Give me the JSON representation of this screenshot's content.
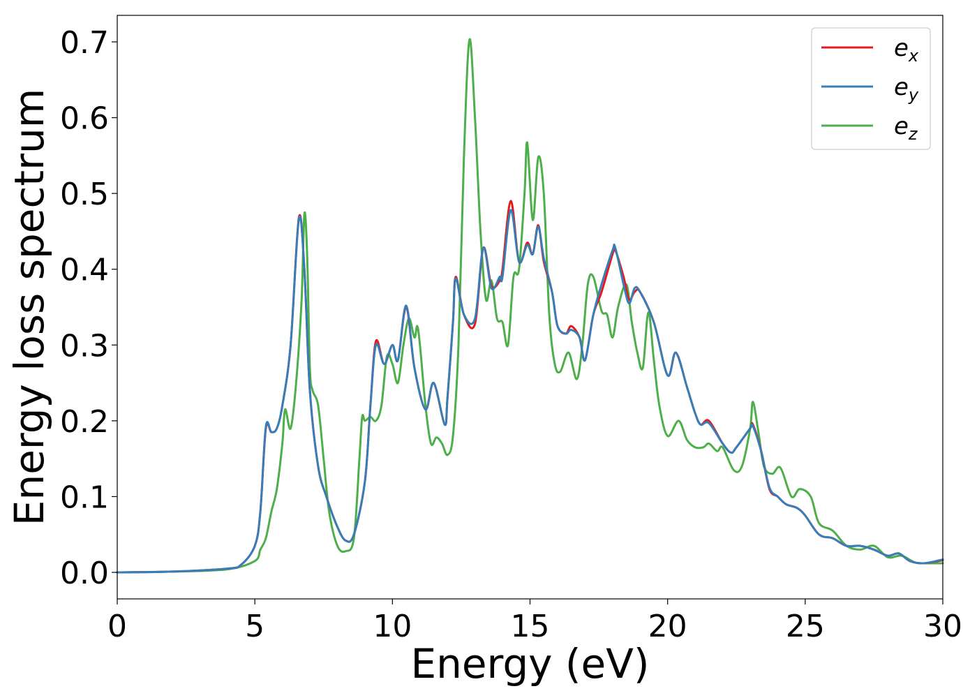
{
  "chart_data": {
    "type": "line",
    "xlabel": "Energy (eV)",
    "ylabel": "Energy loss spectrum",
    "xlim": [
      0,
      30
    ],
    "ylim": [
      -0.035,
      0.735
    ],
    "xticks": [
      0,
      5,
      10,
      15,
      20,
      25,
      30
    ],
    "yticks": [
      0.0,
      0.1,
      0.2,
      0.3,
      0.4,
      0.5,
      0.6,
      0.7
    ],
    "xtick_labels": [
      "0",
      "5",
      "10",
      "15",
      "20",
      "25",
      "30"
    ],
    "ytick_labels": [
      "0.0",
      "0.1",
      "0.2",
      "0.3",
      "0.4",
      "0.5",
      "0.6",
      "0.7"
    ],
    "grid": false,
    "legend_position": "top-right",
    "series": [
      {
        "name": "e_x",
        "legend_base": "e",
        "legend_sub": "x",
        "color": "#e41a1c",
        "points": [
          [
            0,
            0
          ],
          [
            2,
            0.001
          ],
          [
            4,
            0.005
          ],
          [
            4.5,
            0.01
          ],
          [
            5,
            0.035
          ],
          [
            5.2,
            0.08
          ],
          [
            5.4,
            0.19
          ],
          [
            5.6,
            0.185
          ],
          [
            5.8,
            0.19
          ],
          [
            6.0,
            0.22
          ],
          [
            6.3,
            0.3
          ],
          [
            6.6,
            0.468
          ],
          [
            6.8,
            0.4
          ],
          [
            7.0,
            0.24
          ],
          [
            7.3,
            0.14
          ],
          [
            7.6,
            0.1
          ],
          [
            8.0,
            0.06
          ],
          [
            8.3,
            0.042
          ],
          [
            8.6,
            0.05
          ],
          [
            9.0,
            0.12
          ],
          [
            9.2,
            0.22
          ],
          [
            9.4,
            0.305
          ],
          [
            9.7,
            0.275
          ],
          [
            10.0,
            0.3
          ],
          [
            10.2,
            0.28
          ],
          [
            10.5,
            0.35
          ],
          [
            10.8,
            0.27
          ],
          [
            11.2,
            0.215
          ],
          [
            11.5,
            0.25
          ],
          [
            11.9,
            0.195
          ],
          [
            12.0,
            0.23
          ],
          [
            12.2,
            0.33
          ],
          [
            12.3,
            0.39
          ],
          [
            12.6,
            0.34
          ],
          [
            13.0,
            0.328
          ],
          [
            13.3,
            0.428
          ],
          [
            13.6,
            0.378
          ],
          [
            13.9,
            0.385
          ],
          [
            14.0,
            0.4
          ],
          [
            14.3,
            0.49
          ],
          [
            14.6,
            0.41
          ],
          [
            14.9,
            0.435
          ],
          [
            15.1,
            0.42
          ],
          [
            15.3,
            0.458
          ],
          [
            15.5,
            0.41
          ],
          [
            15.8,
            0.37
          ],
          [
            16.0,
            0.325
          ],
          [
            16.3,
            0.315
          ],
          [
            16.5,
            0.325
          ],
          [
            16.8,
            0.31
          ],
          [
            17.0,
            0.28
          ],
          [
            17.3,
            0.34
          ],
          [
            17.6,
            0.37
          ],
          [
            18.0,
            0.42
          ],
          [
            18.1,
            0.425
          ],
          [
            18.4,
            0.39
          ],
          [
            18.6,
            0.36
          ],
          [
            18.8,
            0.37
          ],
          [
            19.0,
            0.37
          ],
          [
            19.5,
            0.33
          ],
          [
            20.0,
            0.26
          ],
          [
            20.3,
            0.29
          ],
          [
            20.7,
            0.245
          ],
          [
            21.0,
            0.21
          ],
          [
            21.2,
            0.195
          ],
          [
            21.5,
            0.2
          ],
          [
            22.0,
            0.17
          ],
          [
            22.3,
            0.158
          ],
          [
            22.5,
            0.165
          ],
          [
            23.0,
            0.19
          ],
          [
            23.1,
            0.195
          ],
          [
            23.4,
            0.16
          ],
          [
            23.7,
            0.11
          ],
          [
            24.0,
            0.1
          ],
          [
            24.3,
            0.09
          ],
          [
            24.7,
            0.085
          ],
          [
            25.0,
            0.075
          ],
          [
            25.5,
            0.05
          ],
          [
            26.0,
            0.045
          ],
          [
            26.5,
            0.035
          ],
          [
            27.0,
            0.035
          ],
          [
            27.5,
            0.03
          ],
          [
            28.0,
            0.022
          ],
          [
            28.4,
            0.025
          ],
          [
            28.8,
            0.015
          ],
          [
            29.3,
            0.012
          ],
          [
            30.0,
            0.016
          ]
        ]
      },
      {
        "name": "e_y",
        "legend_base": "e",
        "legend_sub": "y",
        "color": "#377eb8",
        "points": [
          [
            0,
            0
          ],
          [
            2,
            0.001
          ],
          [
            4,
            0.005
          ],
          [
            4.5,
            0.01
          ],
          [
            5,
            0.035
          ],
          [
            5.2,
            0.08
          ],
          [
            5.4,
            0.192
          ],
          [
            5.6,
            0.185
          ],
          [
            5.8,
            0.19
          ],
          [
            6.0,
            0.22
          ],
          [
            6.3,
            0.3
          ],
          [
            6.6,
            0.466
          ],
          [
            6.8,
            0.4
          ],
          [
            7.0,
            0.24
          ],
          [
            7.3,
            0.14
          ],
          [
            7.6,
            0.1
          ],
          [
            8.0,
            0.06
          ],
          [
            8.3,
            0.042
          ],
          [
            8.6,
            0.05
          ],
          [
            9.0,
            0.12
          ],
          [
            9.2,
            0.22
          ],
          [
            9.4,
            0.3
          ],
          [
            9.7,
            0.275
          ],
          [
            10.0,
            0.3
          ],
          [
            10.2,
            0.28
          ],
          [
            10.5,
            0.352
          ],
          [
            10.8,
            0.27
          ],
          [
            11.2,
            0.215
          ],
          [
            11.5,
            0.25
          ],
          [
            11.9,
            0.195
          ],
          [
            12.0,
            0.23
          ],
          [
            12.2,
            0.33
          ],
          [
            12.3,
            0.388
          ],
          [
            12.6,
            0.34
          ],
          [
            13.0,
            0.335
          ],
          [
            13.3,
            0.428
          ],
          [
            13.6,
            0.375
          ],
          [
            13.9,
            0.39
          ],
          [
            14.0,
            0.39
          ],
          [
            14.3,
            0.478
          ],
          [
            14.6,
            0.41
          ],
          [
            14.9,
            0.432
          ],
          [
            15.1,
            0.42
          ],
          [
            15.3,
            0.456
          ],
          [
            15.5,
            0.415
          ],
          [
            15.8,
            0.37
          ],
          [
            16.0,
            0.325
          ],
          [
            16.3,
            0.315
          ],
          [
            16.5,
            0.32
          ],
          [
            16.8,
            0.31
          ],
          [
            17.0,
            0.28
          ],
          [
            17.3,
            0.34
          ],
          [
            17.6,
            0.38
          ],
          [
            18.0,
            0.425
          ],
          [
            18.1,
            0.428
          ],
          [
            18.4,
            0.38
          ],
          [
            18.6,
            0.355
          ],
          [
            18.8,
            0.375
          ],
          [
            19.0,
            0.37
          ],
          [
            19.5,
            0.33
          ],
          [
            20.0,
            0.26
          ],
          [
            20.3,
            0.29
          ],
          [
            20.7,
            0.245
          ],
          [
            21.0,
            0.21
          ],
          [
            21.2,
            0.195
          ],
          [
            21.5,
            0.197
          ],
          [
            22.0,
            0.17
          ],
          [
            22.3,
            0.158
          ],
          [
            22.5,
            0.165
          ],
          [
            23.0,
            0.19
          ],
          [
            23.1,
            0.193
          ],
          [
            23.4,
            0.16
          ],
          [
            23.7,
            0.112
          ],
          [
            24.0,
            0.1
          ],
          [
            24.3,
            0.09
          ],
          [
            24.7,
            0.085
          ],
          [
            25.0,
            0.075
          ],
          [
            25.5,
            0.05
          ],
          [
            26.0,
            0.045
          ],
          [
            26.5,
            0.035
          ],
          [
            27.0,
            0.035
          ],
          [
            27.5,
            0.03
          ],
          [
            28.0,
            0.022
          ],
          [
            28.4,
            0.025
          ],
          [
            28.8,
            0.015
          ],
          [
            29.3,
            0.012
          ],
          [
            30.0,
            0.017
          ]
        ]
      },
      {
        "name": "e_z",
        "legend_base": "e",
        "legend_sub": "z",
        "color": "#4daf4a",
        "points": [
          [
            0,
            0
          ],
          [
            2,
            0.001
          ],
          [
            4,
            0.004
          ],
          [
            5,
            0.015
          ],
          [
            5.2,
            0.03
          ],
          [
            5.4,
            0.045
          ],
          [
            5.6,
            0.08
          ],
          [
            5.8,
            0.11
          ],
          [
            6.0,
            0.17
          ],
          [
            6.1,
            0.215
          ],
          [
            6.3,
            0.19
          ],
          [
            6.5,
            0.25
          ],
          [
            6.7,
            0.36
          ],
          [
            6.8,
            0.473
          ],
          [
            6.9,
            0.42
          ],
          [
            7.0,
            0.27
          ],
          [
            7.1,
            0.24
          ],
          [
            7.3,
            0.22
          ],
          [
            7.5,
            0.15
          ],
          [
            7.7,
            0.08
          ],
          [
            8.0,
            0.035
          ],
          [
            8.3,
            0.028
          ],
          [
            8.6,
            0.045
          ],
          [
            8.8,
            0.15
          ],
          [
            8.9,
            0.205
          ],
          [
            9.0,
            0.2
          ],
          [
            9.2,
            0.205
          ],
          [
            9.4,
            0.2
          ],
          [
            9.6,
            0.22
          ],
          [
            9.8,
            0.285
          ],
          [
            10.0,
            0.275
          ],
          [
            10.2,
            0.25
          ],
          [
            10.4,
            0.3
          ],
          [
            10.6,
            0.335
          ],
          [
            10.8,
            0.31
          ],
          [
            10.9,
            0.325
          ],
          [
            11.0,
            0.3
          ],
          [
            11.2,
            0.22
          ],
          [
            11.4,
            0.17
          ],
          [
            11.6,
            0.178
          ],
          [
            11.8,
            0.17
          ],
          [
            12.0,
            0.155
          ],
          [
            12.2,
            0.18
          ],
          [
            12.4,
            0.3
          ],
          [
            12.6,
            0.55
          ],
          [
            12.8,
            0.703
          ],
          [
            13.0,
            0.6
          ],
          [
            13.2,
            0.45
          ],
          [
            13.4,
            0.36
          ],
          [
            13.6,
            0.385
          ],
          [
            13.8,
            0.335
          ],
          [
            14.0,
            0.33
          ],
          [
            14.2,
            0.3
          ],
          [
            14.4,
            0.39
          ],
          [
            14.6,
            0.4
          ],
          [
            14.8,
            0.5
          ],
          [
            14.9,
            0.567
          ],
          [
            15.1,
            0.465
          ],
          [
            15.3,
            0.548
          ],
          [
            15.5,
            0.5
          ],
          [
            15.7,
            0.34
          ],
          [
            15.9,
            0.275
          ],
          [
            16.1,
            0.265
          ],
          [
            16.4,
            0.29
          ],
          [
            16.7,
            0.255
          ],
          [
            16.9,
            0.3
          ],
          [
            17.1,
            0.38
          ],
          [
            17.3,
            0.39
          ],
          [
            17.6,
            0.345
          ],
          [
            17.8,
            0.34
          ],
          [
            18.0,
            0.31
          ],
          [
            18.2,
            0.35
          ],
          [
            18.5,
            0.38
          ],
          [
            18.7,
            0.33
          ],
          [
            18.9,
            0.29
          ],
          [
            19.1,
            0.27
          ],
          [
            19.3,
            0.343
          ],
          [
            19.5,
            0.28
          ],
          [
            19.7,
            0.22
          ],
          [
            20.0,
            0.18
          ],
          [
            20.4,
            0.2
          ],
          [
            20.7,
            0.175
          ],
          [
            21.0,
            0.165
          ],
          [
            21.3,
            0.165
          ],
          [
            21.5,
            0.17
          ],
          [
            21.8,
            0.16
          ],
          [
            22.0,
            0.165
          ],
          [
            22.4,
            0.135
          ],
          [
            22.7,
            0.14
          ],
          [
            23.0,
            0.19
          ],
          [
            23.1,
            0.225
          ],
          [
            23.3,
            0.185
          ],
          [
            23.5,
            0.14
          ],
          [
            23.8,
            0.13
          ],
          [
            24.1,
            0.138
          ],
          [
            24.5,
            0.1
          ],
          [
            24.8,
            0.11
          ],
          [
            25.2,
            0.1
          ],
          [
            25.5,
            0.065
          ],
          [
            26.0,
            0.055
          ],
          [
            26.5,
            0.035
          ],
          [
            27.0,
            0.03
          ],
          [
            27.5,
            0.035
          ],
          [
            28.0,
            0.02
          ],
          [
            28.5,
            0.022
          ],
          [
            29.0,
            0.013
          ],
          [
            29.5,
            0.012
          ],
          [
            30.0,
            0.012
          ]
        ]
      }
    ]
  }
}
